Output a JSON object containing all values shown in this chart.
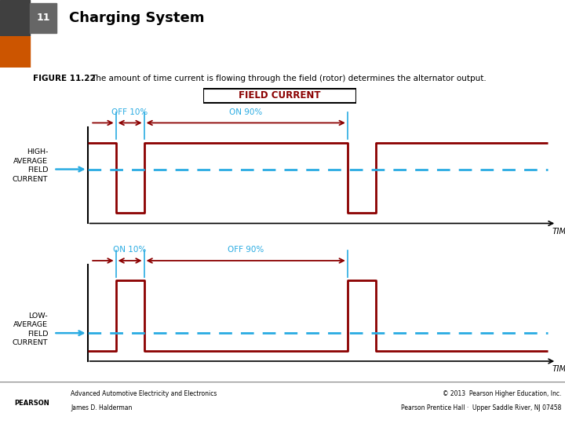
{
  "title": "Charging System",
  "title_num": "11",
  "figure_label": "FIGURE 11.22",
  "figure_caption": "The amount of time current is flowing through the field (rotor) determines the alternator output.",
  "field_current_label": "FIELD CURRENT",
  "bg_color": "#ffffff",
  "dark_red": "#8B0000",
  "cyan": "#29ABE2",
  "top_diagram": {
    "label": "HIGH-\nAVERAGE\nFIELD\nCURRENT",
    "bracket1_label": "OFF 10%",
    "bracket2_label": "ON 90%",
    "time_label": "TIME",
    "avg_level": 0.62
  },
  "bottom_diagram": {
    "label": "LOW-\nAVERAGE\nFIELD\nCURRENT",
    "bracket1_label": "ON 10%",
    "bracket2_label": "OFF 90%",
    "time_label": "TIME",
    "avg_level": 0.25
  },
  "footer_left1": "Advanced Automotive Electricity and Electronics",
  "footer_left2": "James D. Halderman",
  "footer_right1": "© 2013  Pearson Higher Education, Inc.",
  "footer_right2": "Pearson Prentice Hall ·  Upper Saddle River, NJ 07458"
}
